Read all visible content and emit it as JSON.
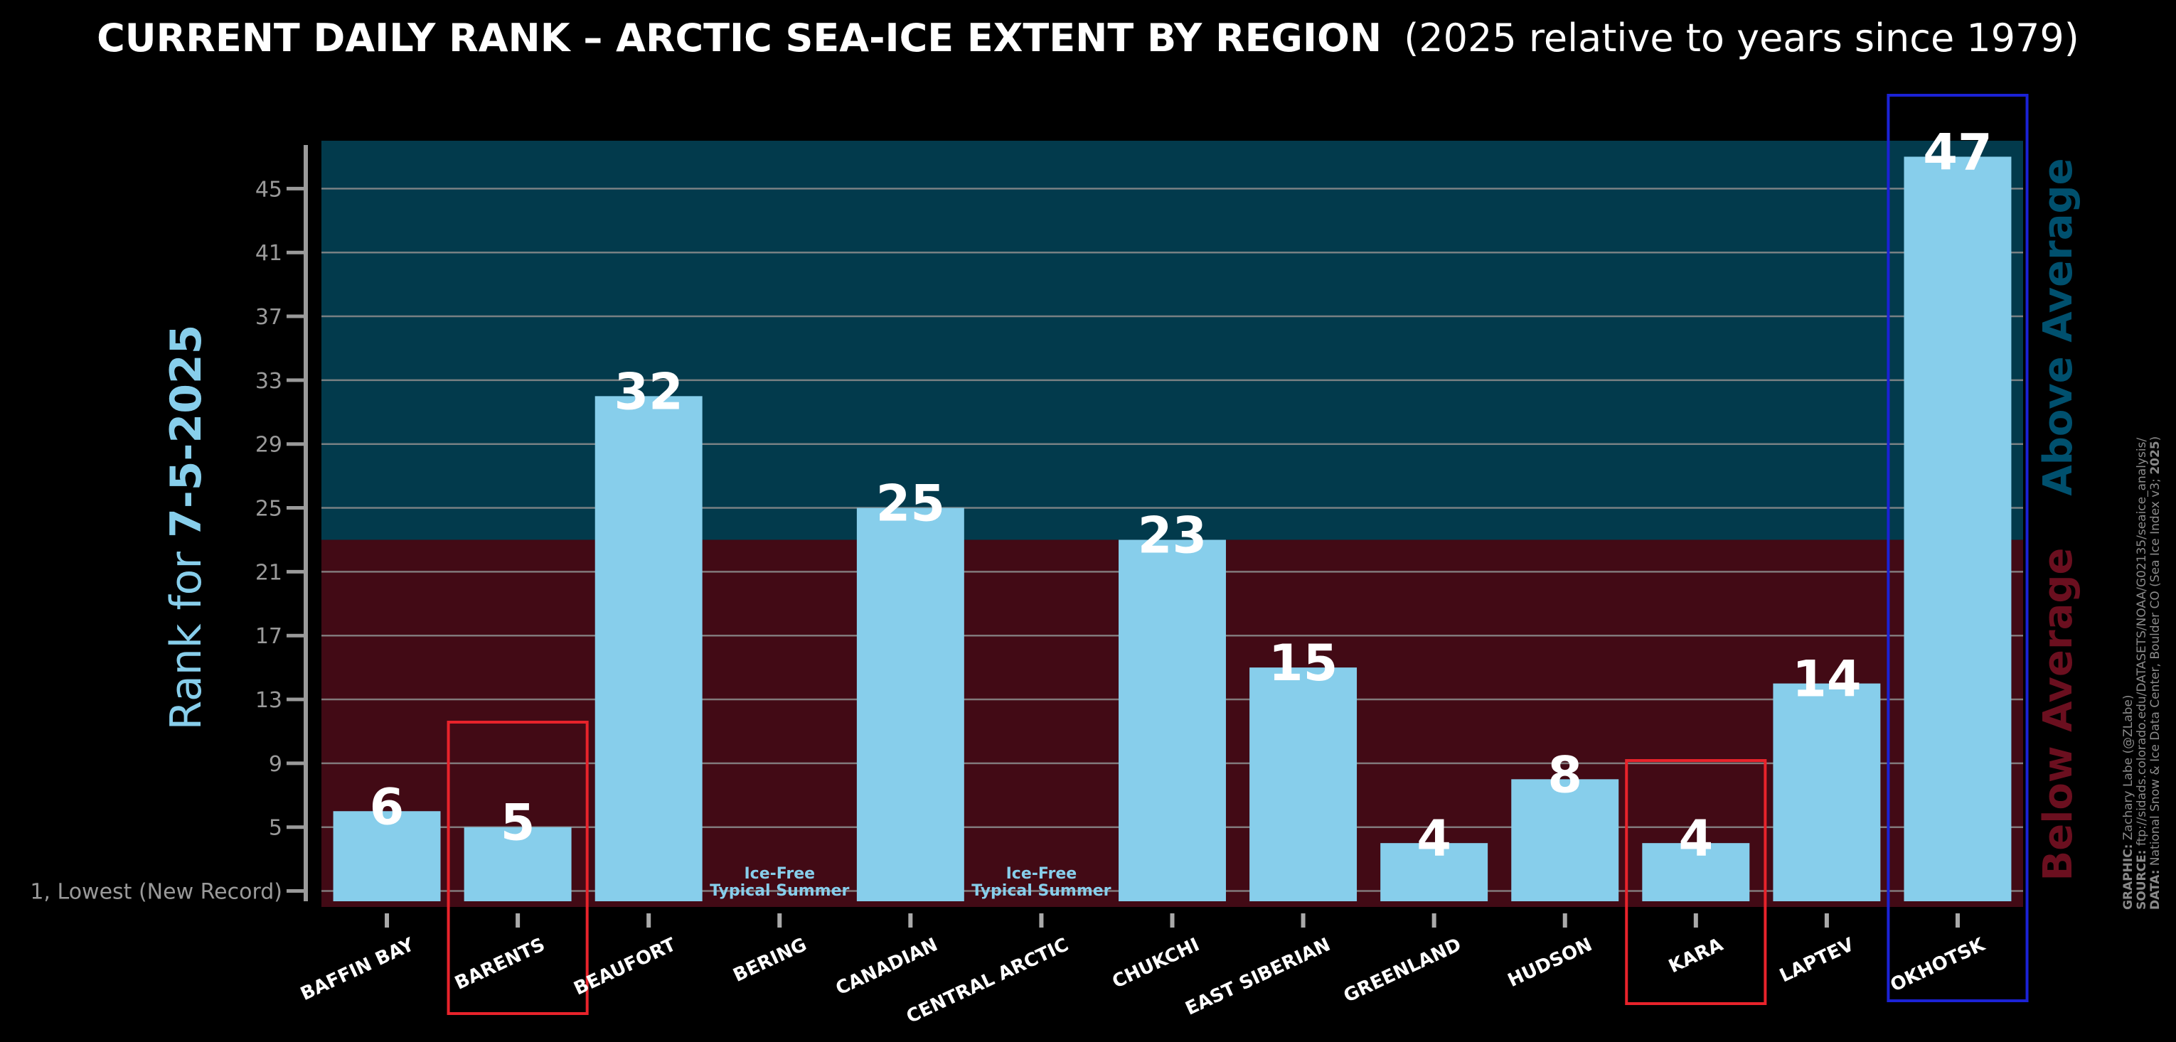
{
  "title": {
    "bold": "CURRENT DAILY RANK – ARCTIC SEA-ICE EXTENT BY REGION",
    "light": "(2025 relative to years since 1979)"
  },
  "ylabel": {
    "prefix": "Rank for ",
    "date": "7-5-2025"
  },
  "regions": {
    "above": "Above Average",
    "below": "Below Average",
    "above_color": "#00506e",
    "below_color": "#6b0f1f"
  },
  "ice_free": {
    "line1": "Ice-Free",
    "line2": "Typical Summer"
  },
  "credits": [
    {
      "label": "DATA:",
      "text": " National Snow & Ice Data Center, Boulder CO (Sea Ice Index v3; ",
      "bold_tail": "2025",
      "tail": ")"
    },
    {
      "label": "SOURCE:",
      "text": " ftp://sidads.colorado.edu/DATASETS/NOAA/G02135/seaice_analysis/",
      "bold_tail": "",
      "tail": ""
    },
    {
      "label": "GRAPHIC:",
      "text": " Zachary Labe (@ZLabe)",
      "bold_tail": "",
      "tail": ""
    }
  ],
  "colors": {
    "bar": "#87CEEB",
    "above_bg": "#023a4c",
    "below_bg": "#420a15",
    "highlight_red": "#e8232b",
    "highlight_blue": "#1b22d6"
  },
  "chart_data": {
    "type": "bar",
    "categories": [
      "BAFFIN BAY",
      "BARENTS",
      "BEAUFORT",
      "BERING",
      "CANADIAN",
      "CENTRAL ARCTIC",
      "CHUKCHI",
      "EAST SIBERIAN",
      "GREENLAND",
      "HUDSON",
      "KARA",
      "LAPTEV",
      "OKHOTSK"
    ],
    "values": [
      6,
      5,
      32,
      null,
      25,
      null,
      23,
      15,
      4,
      8,
      4,
      14,
      47
    ],
    "value_labels": [
      "6",
      "5",
      "32",
      "",
      "25",
      "",
      "23",
      "15",
      "4",
      "8",
      "4",
      "14",
      "47"
    ],
    "ice_free": [
      false,
      false,
      false,
      true,
      false,
      true,
      false,
      false,
      false,
      false,
      false,
      false,
      false
    ],
    "highlight": [
      "none",
      "red",
      "none",
      "none",
      "none",
      "none",
      "none",
      "none",
      "none",
      "none",
      "red",
      "none",
      "blue"
    ],
    "ylim": [
      0,
      48
    ],
    "average_threshold": 23,
    "yticks": [
      1,
      5,
      9,
      13,
      17,
      21,
      25,
      29,
      33,
      37,
      41,
      45
    ],
    "ytick_labels": [
      "1, Lowest (New Record)",
      "5",
      "9",
      "13",
      "17",
      "21",
      "25",
      "29",
      "33",
      "37",
      "41",
      "45"
    ],
    "grid": true
  }
}
